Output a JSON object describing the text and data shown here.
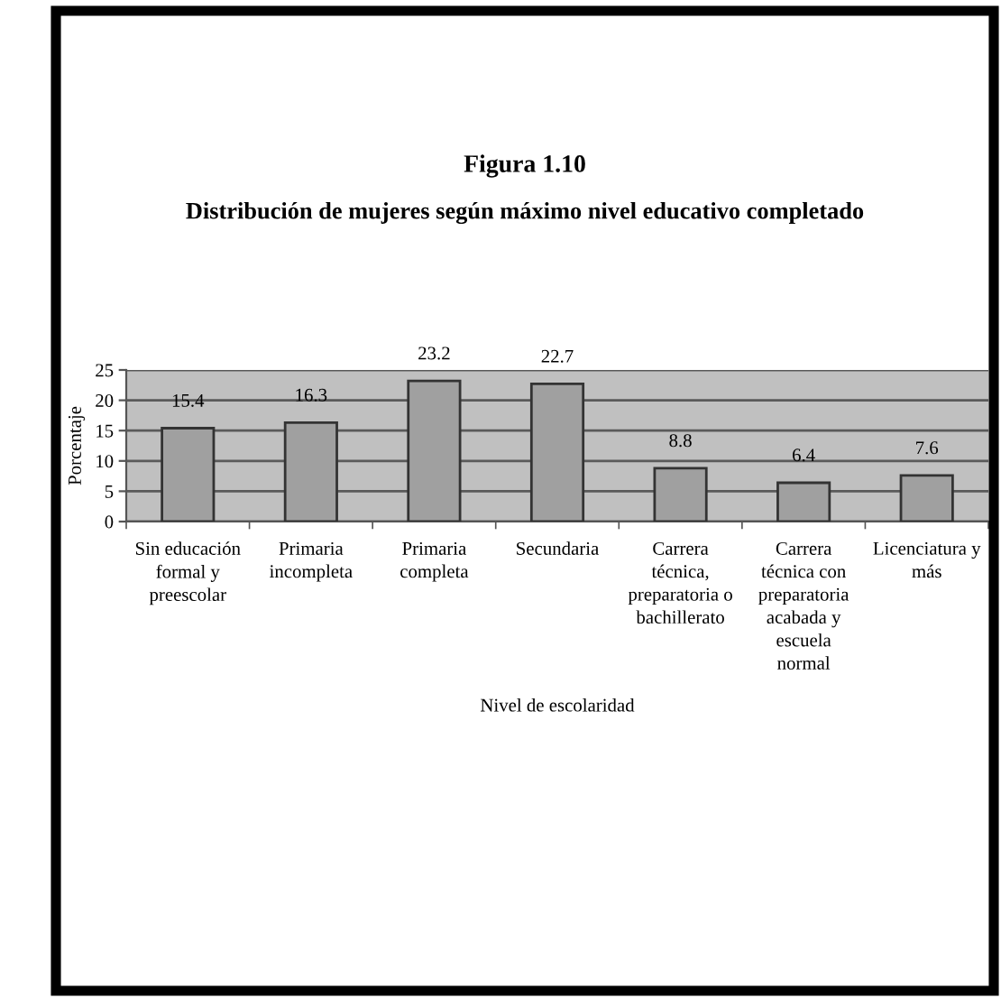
{
  "chart_data": {
    "type": "bar",
    "title": "Figura 1.10",
    "subtitle": "Distribución de mujeres según máximo nivel educativo completado",
    "xlabel": "Nivel de escolaridad",
    "ylabel": "Porcentaje",
    "categories": [
      "Sin educación\nformal y\npreescolar",
      "Primaria\nincompleta",
      "Primaria\ncompleta",
      "Secundaria",
      "Carrera\ntécnica,\npreparatoria o\nbachillerato",
      "Carrera\ntécnica con\npreparatoria\nacabada y\nescuela\nnormal",
      "Licenciatura y\nmás"
    ],
    "values": [
      15.4,
      16.3,
      23.2,
      22.7,
      8.8,
      6.4,
      7.6
    ],
    "color": "#a0a0a0",
    "ylim": [
      0,
      25
    ],
    "yticks": [
      0,
      5,
      10,
      15,
      20,
      25
    ],
    "grid": "y",
    "data_labels": true
  }
}
